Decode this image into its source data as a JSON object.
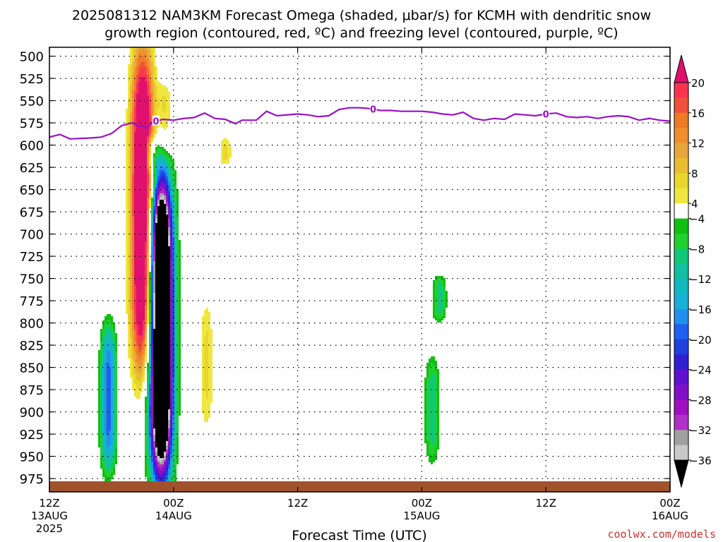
{
  "chart_data": {
    "type": "heatmap",
    "title_line1": "2025081312 NAM3KM Forecast Omega (shaded, μbar/s) for KCMH with dendritic snow",
    "title_line2": "growth region (contoured, red, ºC) and freezing level (contoured, purple, ºC)",
    "xlabel": "Forecast Time (UTC)",
    "credit": "coolwx.com/models",
    "y_ticks": [
      500,
      525,
      550,
      575,
      600,
      625,
      650,
      675,
      700,
      725,
      750,
      775,
      800,
      825,
      850,
      875,
      900,
      925,
      950,
      975
    ],
    "y_range": [
      490,
      990
    ],
    "x_range_hours": [
      0,
      60
    ],
    "x_ticks": [
      {
        "hour": 0,
        "l1": "12Z",
        "l2": "13AUG",
        "l3": "2025"
      },
      {
        "hour": 12,
        "l1": "00Z",
        "l2": "14AUG",
        "l3": ""
      },
      {
        "hour": 24,
        "l1": "12Z",
        "l2": "",
        "l3": ""
      },
      {
        "hour": 36,
        "l1": "00Z",
        "l2": "15AUG",
        "l3": ""
      },
      {
        "hour": 48,
        "l1": "12Z",
        "l2": "",
        "l3": ""
      },
      {
        "hour": 60,
        "l1": "00Z",
        "l2": "16AUG",
        "l3": ""
      }
    ],
    "colorbar": {
      "labels": [
        "20",
        "16",
        "12",
        "8",
        "4",
        "−4",
        "−8",
        "−12",
        "−16",
        "−20",
        "−24",
        "−28",
        "−32",
        "−36"
      ],
      "bins": [
        {
          "lo": 20,
          "hi": 99,
          "color": "#e0106e",
          "arrow": "up"
        },
        {
          "lo": 18,
          "hi": 20,
          "color": "#ff3350"
        },
        {
          "lo": 16,
          "hi": 18,
          "color": "#f0503c"
        },
        {
          "lo": 14,
          "hi": 16,
          "color": "#ee7a26"
        },
        {
          "lo": 12,
          "hi": 14,
          "color": "#f08e2e"
        },
        {
          "lo": 10,
          "hi": 12,
          "color": "#e8a63a"
        },
        {
          "lo": 8,
          "hi": 10,
          "color": "#e8be30"
        },
        {
          "lo": 6,
          "hi": 8,
          "color": "#e8d62c"
        },
        {
          "lo": 4,
          "hi": 6,
          "color": "#f0e640"
        },
        {
          "lo": -4,
          "hi": 4,
          "color": "#ffffff"
        },
        {
          "lo": -6,
          "hi": -4,
          "color": "#10c010"
        },
        {
          "lo": -8,
          "hi": -6,
          "color": "#20d030"
        },
        {
          "lo": -10,
          "hi": -8,
          "color": "#10c878"
        },
        {
          "lo": -12,
          "hi": -10,
          "color": "#10c0a0"
        },
        {
          "lo": -14,
          "hi": -12,
          "color": "#10b8c0"
        },
        {
          "lo": -16,
          "hi": -14,
          "color": "#18b0d8"
        },
        {
          "lo": -18,
          "hi": -16,
          "color": "#2090f0"
        },
        {
          "lo": -20,
          "hi": -18,
          "color": "#2060f0"
        },
        {
          "lo": -22,
          "hi": -20,
          "color": "#2040e0"
        },
        {
          "lo": -24,
          "hi": -22,
          "color": "#3020d0"
        },
        {
          "lo": -26,
          "hi": -24,
          "color": "#6010d0"
        },
        {
          "lo": -28,
          "hi": -26,
          "color": "#8010c8"
        },
        {
          "lo": -30,
          "hi": -28,
          "color": "#a010c0"
        },
        {
          "lo": -32,
          "hi": -30,
          "color": "#b030c8"
        },
        {
          "lo": -34,
          "hi": -32,
          "color": "#a0a0a0"
        },
        {
          "lo": -36,
          "hi": -34,
          "color": "#c8c8c8"
        },
        {
          "lo": -99,
          "hi": -36,
          "color": "#000000",
          "arrow": "down"
        }
      ]
    },
    "freezing_level": {
      "color": "#9a10c8",
      "label": "0",
      "label_hours": [
        10.3,
        31.3,
        48.0
      ],
      "points": [
        [
          0,
          591
        ],
        [
          1,
          588
        ],
        [
          2,
          593
        ],
        [
          4,
          592
        ],
        [
          5,
          591
        ],
        [
          6,
          587
        ],
        [
          7,
          578
        ],
        [
          8,
          575
        ],
        [
          8.6,
          579
        ],
        [
          9,
          578
        ],
        [
          9.4,
          581
        ],
        [
          10,
          574
        ],
        [
          11,
          571
        ],
        [
          12,
          572
        ],
        [
          13,
          570
        ],
        [
          14,
          569
        ],
        [
          15,
          564
        ],
        [
          16,
          570
        ],
        [
          17,
          571
        ],
        [
          18,
          576
        ],
        [
          18.6,
          572
        ],
        [
          19,
          572
        ],
        [
          20,
          572
        ],
        [
          21,
          562
        ],
        [
          22,
          567
        ],
        [
          24,
          565
        ],
        [
          25,
          566
        ],
        [
          26,
          568
        ],
        [
          27,
          567
        ],
        [
          28,
          560
        ],
        [
          29,
          558
        ],
        [
          30,
          558
        ],
        [
          31,
          559
        ],
        [
          32,
          561
        ],
        [
          33,
          561
        ],
        [
          34,
          562
        ],
        [
          35,
          562
        ],
        [
          36,
          562
        ],
        [
          37,
          563
        ],
        [
          38,
          565
        ],
        [
          39,
          566
        ],
        [
          40,
          563
        ],
        [
          41,
          570
        ],
        [
          42,
          572
        ],
        [
          43,
          570
        ],
        [
          44,
          571
        ],
        [
          45,
          565
        ],
        [
          46,
          566
        ],
        [
          47,
          567
        ],
        [
          48,
          565
        ],
        [
          49,
          564
        ],
        [
          50,
          568
        ],
        [
          51,
          569
        ],
        [
          52,
          568
        ],
        [
          53,
          570
        ],
        [
          54,
          568
        ],
        [
          55,
          567
        ],
        [
          56,
          568
        ],
        [
          57,
          572
        ],
        [
          58,
          570
        ],
        [
          59,
          572
        ],
        [
          60,
          573
        ]
      ]
    },
    "surface_terrain_color": "#a0522d",
    "omega_features": [
      {
        "sign": "positive",
        "hour": 9.0,
        "p_top": 490,
        "p_bottom": 860,
        "peak": 20
      },
      {
        "sign": "positive",
        "hour": 11.2,
        "p_top": 527,
        "p_bottom": 612,
        "peak": 4
      },
      {
        "sign": "positive",
        "hour": 15.2,
        "p_top": 770,
        "p_bottom": 925,
        "peak": 4
      },
      {
        "sign": "positive",
        "hour": 17.0,
        "p_top": 590,
        "p_bottom": 625,
        "peak": 4
      },
      {
        "sign": "negative",
        "hour": 5.7,
        "p_top": 800,
        "p_bottom": 970,
        "peak": -12
      },
      {
        "sign": "negative",
        "hour": 9.8,
        "p_top": 590,
        "p_bottom": 630,
        "peak": -6
      },
      {
        "sign": "negative",
        "hour": 10.8,
        "p_top": 635,
        "p_bottom": 975,
        "peak": -40
      },
      {
        "sign": "negative",
        "hour": 37.7,
        "p_top": 745,
        "p_bottom": 800,
        "peak": -6
      },
      {
        "sign": "negative",
        "hour": 37.0,
        "p_top": 835,
        "p_bottom": 960,
        "peak": -6
      }
    ]
  }
}
